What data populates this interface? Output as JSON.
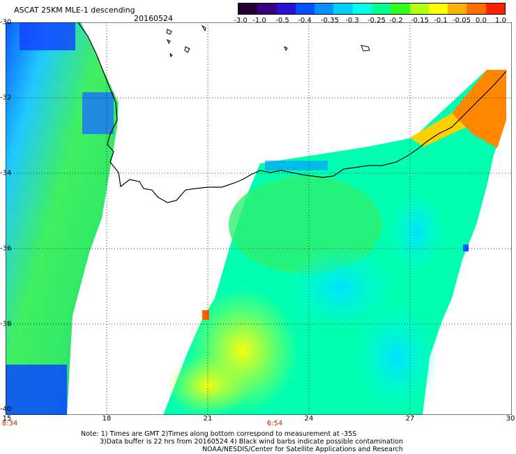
{
  "header": {
    "title": "ASCAT 25KM MLE-1 descending",
    "date": "20160524"
  },
  "colorbar": {
    "labels": [
      "-3.0",
      "-1.0",
      "-0.5",
      "-0.4",
      "-0.35",
      "-0.3",
      "-0.25",
      "-0.2",
      "-0.15",
      "-0.1",
      "-0.05",
      "0.0",
      "1.0"
    ],
    "colors": [
      "#220033",
      "#3a0080",
      "#2a10d0",
      "#0050ff",
      "#0090ff",
      "#00d0ff",
      "#00ffe8",
      "#00ff90",
      "#30ff20",
      "#b0ff10",
      "#ffff00",
      "#ffb000",
      "#ff7000",
      "#ff2000"
    ]
  },
  "axes": {
    "y_labels": [
      "-30",
      "-32",
      "-34",
      "-36",
      "-38",
      "-40"
    ],
    "x_labels": [
      "15",
      "18",
      "21",
      "24",
      "27",
      "30"
    ]
  },
  "pass_times": [
    "8:34",
    "6:54"
  ],
  "notes": {
    "line1": "Note: 1) Times are GMT 2)Times along bottom correspond to measurement at -35S",
    "line2": "3)Data buffer is 22 hrs from 20160524 4) Black wind barbs indicate possible contamination",
    "line3": "NOAA/NESDIS/Center for Satellite Applications and Research"
  }
}
